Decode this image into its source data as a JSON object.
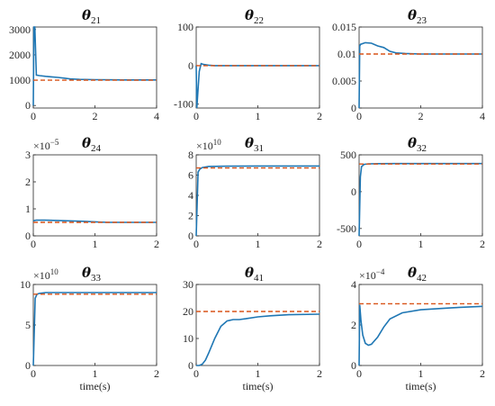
{
  "chart_data": [
    {
      "type": "line",
      "title_symbol": "θ",
      "title_sub": "21",
      "xlim": [
        0,
        4
      ],
      "xticks": [
        "0",
        "2",
        "4"
      ],
      "ylim": [
        -100,
        3100
      ],
      "yticks": [
        0,
        1000,
        2000,
        3000
      ],
      "ytick_labels": [
        "0",
        "1000",
        "2000",
        "3000"
      ],
      "multiplier": null,
      "xlabel": "",
      "series": [
        {
          "role": "estimate",
          "color": "#1f77b4",
          "x": [
            0,
            0.02,
            0.05,
            0.1,
            0.2,
            0.4,
            0.6,
            0.8,
            1.0,
            1.2,
            1.5,
            2.0,
            3.0,
            4.0
          ],
          "y": [
            0,
            3100,
            3100,
            1200,
            1180,
            1150,
            1130,
            1110,
            1080,
            1050,
            1030,
            1020,
            1010,
            1010
          ]
        },
        {
          "role": "true",
          "color": "#d95319",
          "dashed": true,
          "x": [
            0,
            4
          ],
          "y": [
            1000,
            1000
          ]
        }
      ]
    },
    {
      "type": "line",
      "title_symbol": "θ",
      "title_sub": "22",
      "xlim": [
        0,
        2
      ],
      "xticks": [
        "0",
        "1",
        "2"
      ],
      "ylim": [
        -110,
        100
      ],
      "yticks": [
        -100,
        0,
        100
      ],
      "ytick_labels": [
        "-100",
        "0",
        "100"
      ],
      "multiplier": null,
      "xlabel": "",
      "series": [
        {
          "role": "estimate",
          "color": "#1f77b4",
          "x": [
            0,
            0.01,
            0.03,
            0.05,
            0.08,
            0.12,
            0.2,
            0.3,
            0.5,
            1.0,
            2.0
          ],
          "y": [
            0,
            -110,
            -60,
            -15,
            5,
            3,
            1,
            0,
            0,
            0,
            0
          ]
        },
        {
          "role": "true",
          "color": "#d95319",
          "dashed": true,
          "x": [
            0,
            2
          ],
          "y": [
            0,
            0
          ]
        }
      ]
    },
    {
      "type": "line",
      "title_symbol": "θ",
      "title_sub": "23",
      "xlim": [
        0,
        4
      ],
      "xticks": [
        "0",
        "2",
        "4"
      ],
      "ylim": [
        0,
        0.015
      ],
      "yticks": [
        0,
        0.005,
        0.01,
        0.015
      ],
      "ytick_labels": [
        "0",
        "0.005",
        "0.01",
        "0.015"
      ],
      "multiplier": null,
      "xlabel": "",
      "series": [
        {
          "role": "estimate",
          "color": "#1f77b4",
          "x": [
            0,
            0.02,
            0.05,
            0.2,
            0.4,
            0.6,
            0.8,
            1.0,
            1.2,
            1.5,
            2.0,
            3.0,
            4.0
          ],
          "y": [
            0,
            0.0115,
            0.0118,
            0.0121,
            0.012,
            0.0115,
            0.0112,
            0.0105,
            0.0102,
            0.0101,
            0.01,
            0.01,
            0.01
          ]
        },
        {
          "role": "true",
          "color": "#d95319",
          "dashed": true,
          "x": [
            0,
            4
          ],
          "y": [
            0.01,
            0.01
          ]
        }
      ]
    },
    {
      "type": "line",
      "title_symbol": "θ",
      "title_sub": "24",
      "xlim": [
        0,
        2
      ],
      "xticks": [
        "0",
        "1",
        "2"
      ],
      "ylim": [
        0,
        3
      ],
      "yticks": [
        0,
        1,
        2,
        3
      ],
      "ytick_labels": [
        "0",
        "1",
        "2",
        "3"
      ],
      "multiplier": {
        "base": "×10",
        "exp": "−5"
      },
      "xlabel": "",
      "series": [
        {
          "role": "estimate",
          "color": "#1f77b4",
          "x": [
            0,
            0.02,
            0.05,
            0.2,
            0.5,
            0.8,
            1.0,
            1.2,
            1.5,
            2.0
          ],
          "y": [
            0.55,
            0.57,
            0.58,
            0.58,
            0.56,
            0.54,
            0.52,
            0.5,
            0.5,
            0.5
          ]
        },
        {
          "role": "true",
          "color": "#d95319",
          "dashed": true,
          "x": [
            0,
            2
          ],
          "y": [
            0.5,
            0.5
          ]
        }
      ]
    },
    {
      "type": "line",
      "title_symbol": "θ",
      "title_sub": "31",
      "xlim": [
        0,
        2
      ],
      "xticks": [
        "0",
        "1",
        "2"
      ],
      "ylim": [
        0,
        8
      ],
      "yticks": [
        0,
        2,
        4,
        6,
        8
      ],
      "ytick_labels": [
        "0",
        "2",
        "4",
        "6",
        "8"
      ],
      "multiplier": {
        "base": "×10",
        "exp": "10"
      },
      "xlabel": "",
      "series": [
        {
          "role": "estimate",
          "color": "#1f77b4",
          "x": [
            0,
            0.03,
            0.06,
            0.1,
            0.2,
            0.5,
            1.0,
            2.0
          ],
          "y": [
            0,
            6.3,
            6.6,
            6.75,
            6.85,
            6.88,
            6.9,
            6.9
          ]
        },
        {
          "role": "true",
          "color": "#d95319",
          "dashed": true,
          "x": [
            0,
            2
          ],
          "y": [
            6.7,
            6.7
          ]
        }
      ]
    },
    {
      "type": "line",
      "title_symbol": "θ",
      "title_sub": "32",
      "xlim": [
        0,
        2
      ],
      "xticks": [
        "0",
        "1",
        "2"
      ],
      "ylim": [
        -600,
        500
      ],
      "yticks": [
        -500,
        0,
        500
      ],
      "ytick_labels": [
        "-500",
        "0",
        "500"
      ],
      "multiplier": null,
      "xlabel": "",
      "series": [
        {
          "role": "estimate",
          "color": "#1f77b4",
          "x": [
            0,
            0.02,
            0.04,
            0.08,
            0.15,
            0.3,
            0.6,
            1.0,
            2.0
          ],
          "y": [
            -600,
            200,
            340,
            370,
            378,
            380,
            382,
            382,
            382
          ]
        },
        {
          "role": "true",
          "color": "#d95319",
          "dashed": true,
          "x": [
            0,
            2
          ],
          "y": [
            375,
            375
          ]
        }
      ]
    },
    {
      "type": "line",
      "title_symbol": "θ",
      "title_sub": "33",
      "xlim": [
        0,
        2
      ],
      "xticks": [
        "0",
        "1",
        "2"
      ],
      "ylim": [
        0,
        10
      ],
      "yticks": [
        0,
        5,
        10
      ],
      "ytick_labels": [
        "0",
        "5",
        "10"
      ],
      "multiplier": {
        "base": "×10",
        "exp": "10"
      },
      "xlabel": "time(s)",
      "series": [
        {
          "role": "estimate",
          "color": "#1f77b4",
          "x": [
            0,
            0.03,
            0.06,
            0.1,
            0.2,
            0.5,
            1.0,
            2.0
          ],
          "y": [
            0,
            8.3,
            8.8,
            8.9,
            9.0,
            9.0,
            9.0,
            9.0
          ]
        },
        {
          "role": "true",
          "color": "#d95319",
          "dashed": true,
          "x": [
            0,
            2
          ],
          "y": [
            8.8,
            8.8
          ]
        }
      ]
    },
    {
      "type": "line",
      "title_symbol": "θ",
      "title_sub": "41",
      "xlim": [
        0,
        2
      ],
      "xticks": [
        "0",
        "1",
        "2"
      ],
      "ylim": [
        0,
        30
      ],
      "yticks": [
        0,
        10,
        20,
        30
      ],
      "ytick_labels": [
        "0",
        "10",
        "20",
        "30"
      ],
      "multiplier": null,
      "xlabel": "time(s)",
      "series": [
        {
          "role": "estimate",
          "color": "#1f77b4",
          "x": [
            0,
            0.05,
            0.1,
            0.15,
            0.2,
            0.3,
            0.4,
            0.5,
            0.6,
            0.7,
            0.8,
            1.0,
            1.2,
            1.5,
            2.0
          ],
          "y": [
            0,
            0,
            0.5,
            2,
            4.5,
            10,
            14.5,
            16.5,
            17,
            17,
            17.3,
            18,
            18.4,
            18.8,
            19
          ]
        },
        {
          "role": "true",
          "color": "#d95319",
          "dashed": true,
          "x": [
            0,
            2
          ],
          "y": [
            20,
            20
          ]
        }
      ]
    },
    {
      "type": "line",
      "title_symbol": "θ",
      "title_sub": "42",
      "xlim": [
        0,
        2
      ],
      "xticks": [
        "0",
        "1",
        "2"
      ],
      "ylim": [
        0,
        4
      ],
      "yticks": [
        0,
        2,
        4
      ],
      "ytick_labels": [
        "0",
        "2",
        "4"
      ],
      "multiplier": {
        "base": "×10",
        "exp": "−4"
      },
      "xlabel": "time(s)",
      "series": [
        {
          "role": "estimate",
          "color": "#1f77b4",
          "x": [
            0,
            0.01,
            0.03,
            0.06,
            0.1,
            0.15,
            0.2,
            0.3,
            0.4,
            0.5,
            0.7,
            1.0,
            1.5,
            2.0
          ],
          "y": [
            0,
            3.0,
            2.2,
            1.5,
            1.1,
            1.0,
            1.05,
            1.4,
            1.9,
            2.3,
            2.6,
            2.75,
            2.85,
            2.92
          ]
        },
        {
          "role": "true",
          "color": "#d95319",
          "dashed": true,
          "x": [
            0,
            2
          ],
          "y": [
            3.05,
            3.05
          ]
        }
      ]
    }
  ]
}
